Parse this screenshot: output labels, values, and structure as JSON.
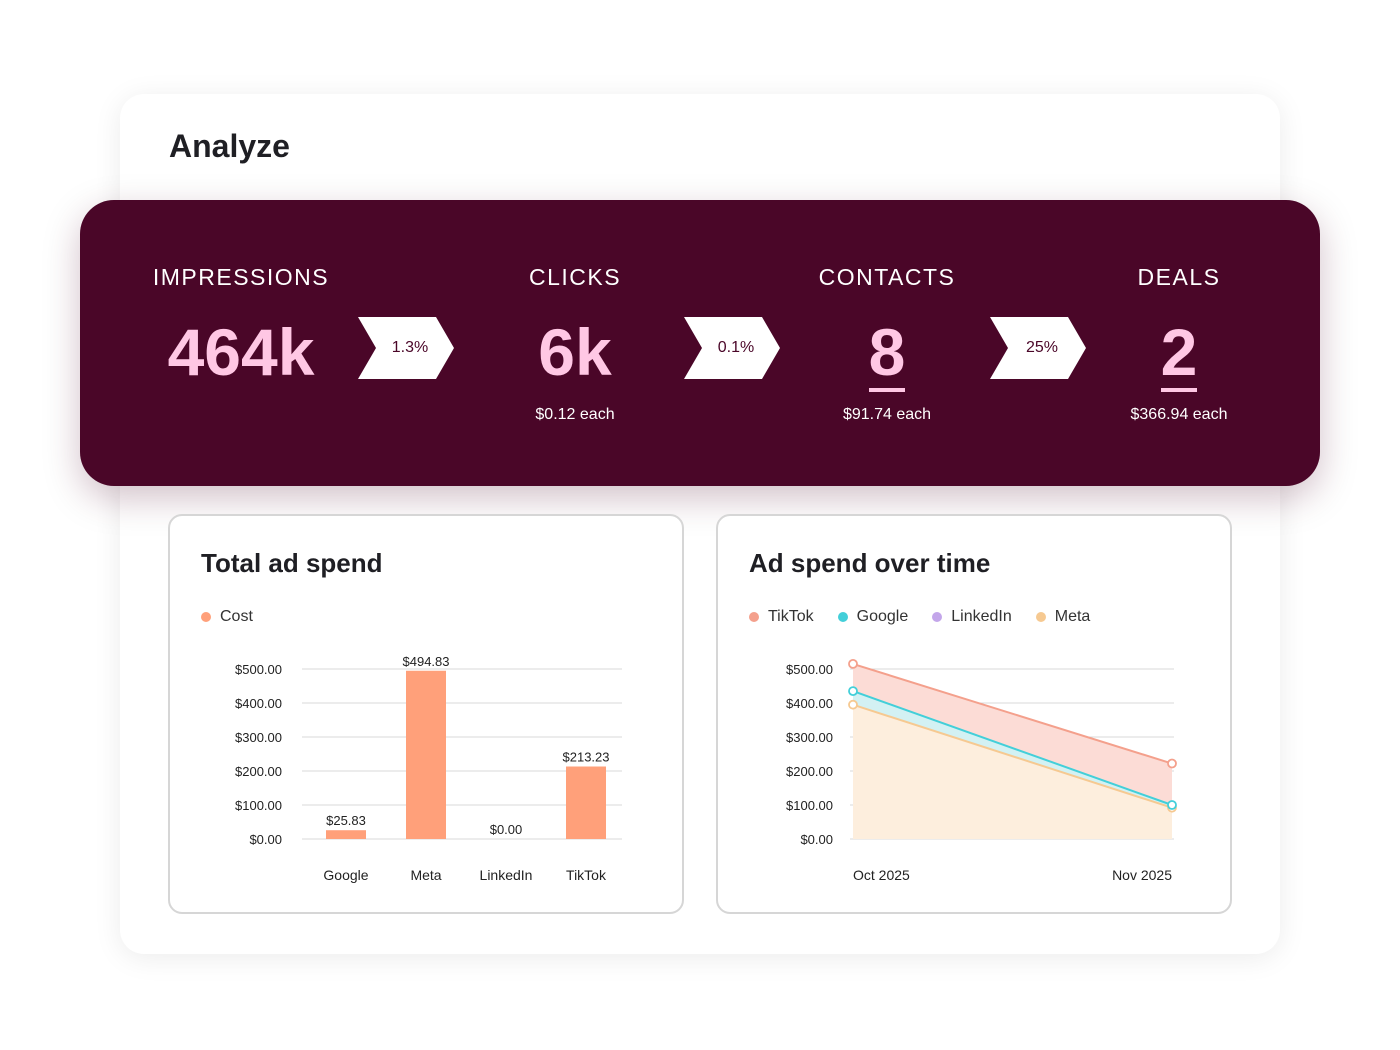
{
  "page": {
    "title": "Analyze"
  },
  "funnel": {
    "stages": [
      {
        "label": "IMPRESSIONS",
        "value": "464k",
        "sub": ""
      },
      {
        "label": "CLICKS",
        "value": "6k",
        "sub": "$0.12 each"
      },
      {
        "label": "CONTACTS",
        "value": "8",
        "sub": "$91.74 each"
      },
      {
        "label": "DEALS",
        "value": "2",
        "sub": "$366.94 each"
      }
    ],
    "rates": [
      "1.3%",
      "0.1%",
      "25%"
    ]
  },
  "colors": {
    "brand": "#4a0628",
    "accent_pink": "#ffc7e4",
    "tiktok": "#f4a08c",
    "google": "#43cfd9",
    "linkedin": "#c3a6ea",
    "meta": "#f6c991",
    "cost": "#ffa07a"
  },
  "chart_data": [
    {
      "type": "bar",
      "title": "Total ad spend",
      "legend": [
        "Cost"
      ],
      "categories": [
        "Google",
        "Meta",
        "LinkedIn",
        "TikTok"
      ],
      "values": [
        25.83,
        494.83,
        0.0,
        213.23
      ],
      "data_labels": [
        "$25.83",
        "$494.83",
        "$0.00",
        "$213.23"
      ],
      "yticks": [
        "$0.00",
        "$100.00",
        "$200.00",
        "$300.00",
        "$400.00",
        "$500.00"
      ],
      "ylim": [
        0,
        500
      ],
      "grid": true
    },
    {
      "type": "area",
      "title": "Ad spend over time",
      "x": [
        "Oct 2025",
        "Nov 2025"
      ],
      "series": [
        {
          "name": "TikTok",
          "values": [
            515,
            222
          ]
        },
        {
          "name": "Google",
          "values": [
            435,
            100
          ]
        },
        {
          "name": "LinkedIn",
          "values": [
            0,
            0
          ]
        },
        {
          "name": "Meta",
          "values": [
            395,
            92
          ]
        }
      ],
      "yticks": [
        "$0.00",
        "$100.00",
        "$200.00",
        "$300.00",
        "$400.00",
        "$500.00"
      ],
      "ylim": [
        0,
        500
      ],
      "grid": true
    }
  ]
}
